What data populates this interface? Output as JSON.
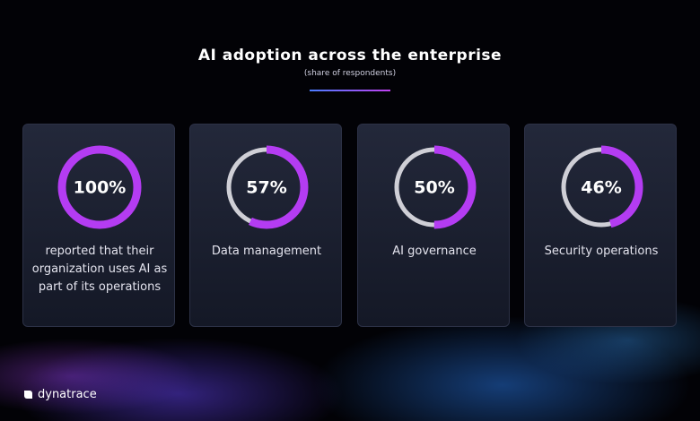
{
  "title": "AI adoption across the enterprise",
  "subtitle": "(share of respondents)",
  "brand": "dynatrace",
  "chart_data": [
    {
      "type": "donut",
      "values": [
        100
      ],
      "value_labels": [
        "100%"
      ],
      "caption": "reported that their organization uses AI as part of its operations",
      "color": "#b43cf2"
    },
    {
      "type": "donut",
      "values": [
        57
      ],
      "value_labels": [
        "57%"
      ],
      "caption": "Data management",
      "color": "#b43cf2"
    },
    {
      "type": "donut",
      "values": [
        50
      ],
      "value_labels": [
        "50%"
      ],
      "caption": "AI governance",
      "color": "#b43cf2"
    },
    {
      "type": "donut",
      "values": [
        46
      ],
      "value_labels": [
        "46%"
      ],
      "caption": "Security operations",
      "color": "#b43cf2"
    }
  ]
}
